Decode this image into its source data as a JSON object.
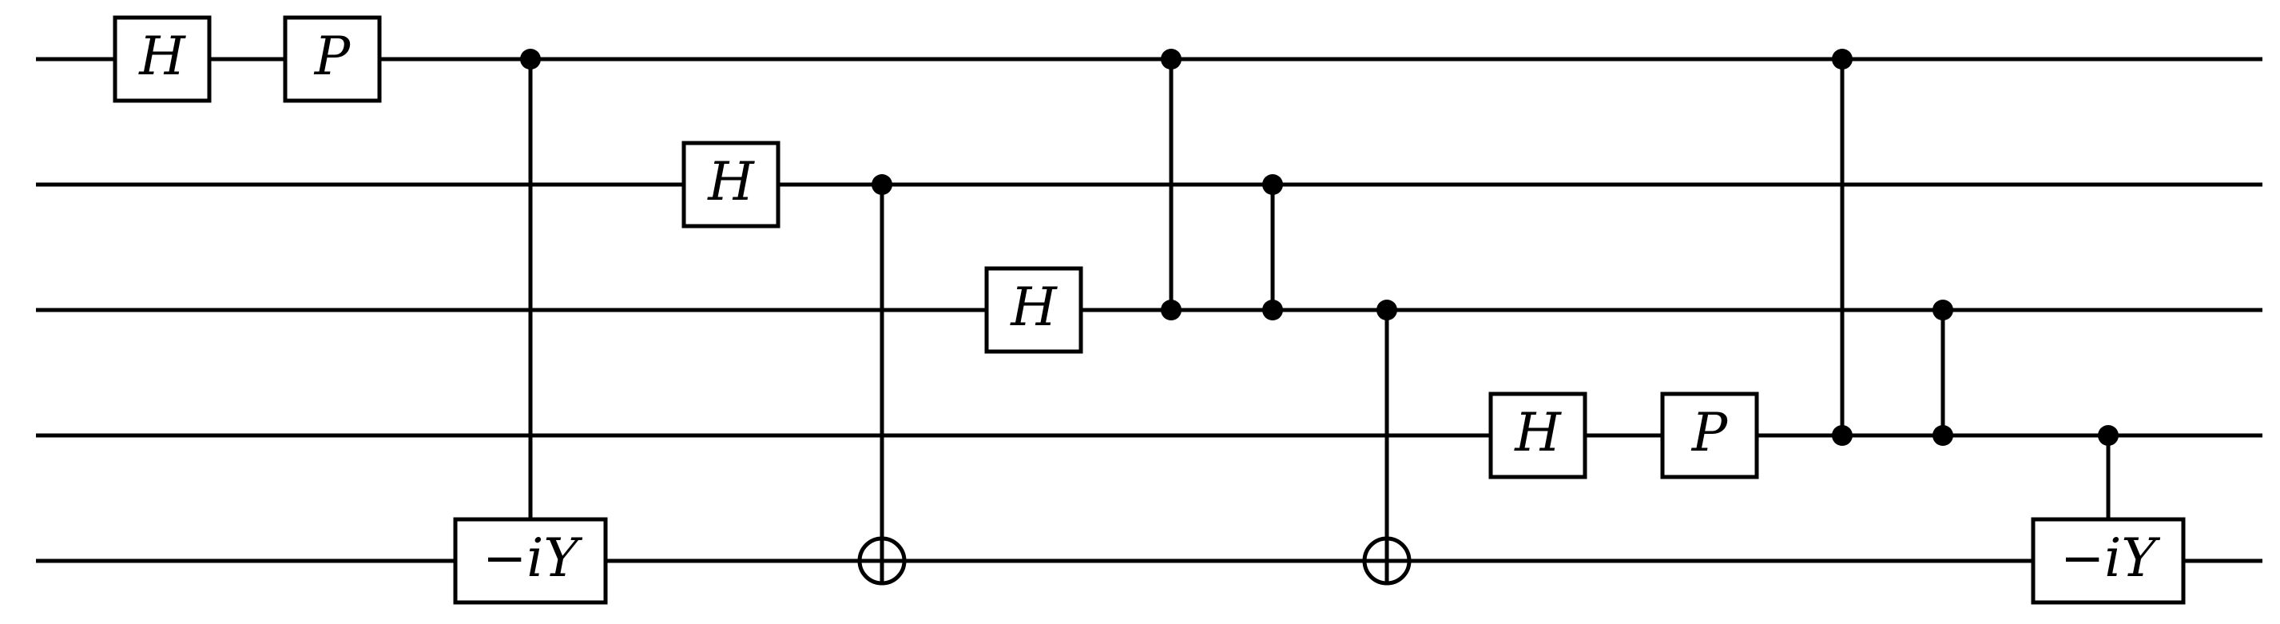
{
  "circuit": {
    "num_qubits": 5,
    "gates": [
      {
        "type": "box",
        "label": "H",
        "qubit": 0
      },
      {
        "type": "box",
        "label": "P",
        "qubit": 0
      },
      {
        "type": "controlled-box",
        "label": "−iY",
        "controls": [
          0
        ],
        "target": 4
      },
      {
        "type": "box",
        "label": "H",
        "qubit": 1
      },
      {
        "type": "cnot",
        "controls": [
          1
        ],
        "target": 4
      },
      {
        "type": "box",
        "label": "H",
        "qubit": 2
      },
      {
        "type": "cz",
        "qubits": [
          0,
          2
        ]
      },
      {
        "type": "cz",
        "qubits": [
          1,
          2
        ]
      },
      {
        "type": "cnot",
        "controls": [
          2
        ],
        "target": 4
      },
      {
        "type": "box",
        "label": "H",
        "qubit": 3
      },
      {
        "type": "box",
        "label": "P",
        "qubit": 3
      },
      {
        "type": "cz",
        "qubits": [
          0,
          3
        ]
      },
      {
        "type": "cz",
        "qubits": [
          2,
          3
        ]
      },
      {
        "type": "controlled-box",
        "label": "−iY",
        "controls": [
          3
        ],
        "target": 4
      }
    ]
  }
}
